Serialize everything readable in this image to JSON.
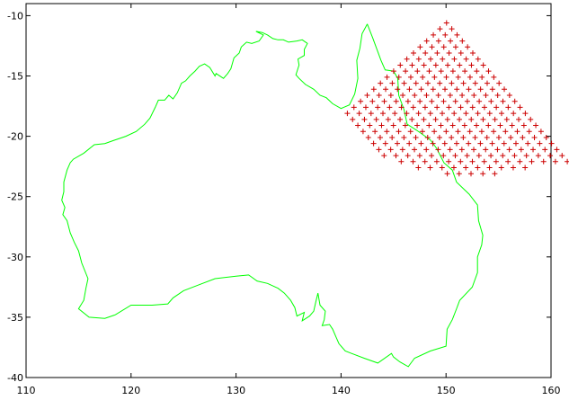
{
  "chart_data": {
    "type": "scatter",
    "title": "",
    "xlabel": "",
    "ylabel": "",
    "xlim": [
      110,
      160
    ],
    "ylim": [
      -40,
      -9
    ],
    "xticks": [
      110,
      120,
      130,
      140,
      150,
      160
    ],
    "yticks": [
      -10,
      -15,
      -20,
      -25,
      -30,
      -35,
      -40
    ],
    "xtick_labels": [
      "110",
      "120",
      "130",
      "140",
      "150",
      "160"
    ],
    "ytick_labels": [
      "-10",
      "-15",
      "-20",
      "-25",
      "-30",
      "-35",
      "-40"
    ],
    "grid": false,
    "legend": "none",
    "series": [
      {
        "kind": "line",
        "color": "#00ff00",
        "points": [
          [
            142.5,
            -10.7
          ],
          [
            143.0,
            -11.8
          ],
          [
            143.8,
            -13.7
          ],
          [
            144.2,
            -14.5
          ],
          [
            145.0,
            -14.6
          ],
          [
            145.4,
            -15.2
          ],
          [
            145.5,
            -16.6
          ],
          [
            146.0,
            -17.8
          ],
          [
            146.3,
            -19.0
          ],
          [
            147.2,
            -19.5
          ],
          [
            148.5,
            -20.3
          ],
          [
            149.1,
            -21.0
          ],
          [
            149.8,
            -22.2
          ],
          [
            150.6,
            -22.8
          ],
          [
            151.0,
            -23.8
          ],
          [
            152.2,
            -24.8
          ],
          [
            153.0,
            -25.7
          ],
          [
            153.1,
            -27.0
          ],
          [
            153.5,
            -28.2
          ],
          [
            153.4,
            -29.0
          ],
          [
            153.0,
            -30.0
          ],
          [
            153.0,
            -31.3
          ],
          [
            152.5,
            -32.5
          ],
          [
            151.3,
            -33.6
          ],
          [
            151.0,
            -34.3
          ],
          [
            150.6,
            -35.2
          ],
          [
            150.1,
            -36.0
          ],
          [
            150.0,
            -37.4
          ],
          [
            148.5,
            -37.8
          ],
          [
            147.0,
            -38.4
          ],
          [
            146.4,
            -39.1
          ],
          [
            145.6,
            -38.7
          ],
          [
            145.0,
            -38.3
          ],
          [
            144.8,
            -38.0
          ],
          [
            143.5,
            -38.8
          ],
          [
            142.2,
            -38.4
          ],
          [
            141.0,
            -38.0
          ],
          [
            140.4,
            -37.8
          ],
          [
            139.8,
            -37.2
          ],
          [
            139.5,
            -36.6
          ],
          [
            139.2,
            -36.0
          ],
          [
            138.9,
            -35.6
          ],
          [
            138.2,
            -35.7
          ],
          [
            138.4,
            -35.2
          ],
          [
            138.5,
            -34.5
          ],
          [
            138.0,
            -34.0
          ],
          [
            137.8,
            -33.0
          ],
          [
            137.6,
            -33.7
          ],
          [
            137.4,
            -34.5
          ],
          [
            137.0,
            -34.9
          ],
          [
            136.3,
            -35.3
          ],
          [
            136.5,
            -34.6
          ],
          [
            135.8,
            -34.9
          ],
          [
            135.6,
            -34.2
          ],
          [
            135.2,
            -33.6
          ],
          [
            134.6,
            -33.0
          ],
          [
            134.0,
            -32.6
          ],
          [
            133.0,
            -32.2
          ],
          [
            132.0,
            -32.0
          ],
          [
            131.2,
            -31.5
          ],
          [
            130.0,
            -31.6
          ],
          [
            128.0,
            -31.8
          ],
          [
            126.5,
            -32.3
          ],
          [
            125.0,
            -32.8
          ],
          [
            124.0,
            -33.4
          ],
          [
            123.5,
            -33.9
          ],
          [
            122.0,
            -34.0
          ],
          [
            120.0,
            -34.0
          ],
          [
            118.5,
            -34.8
          ],
          [
            117.5,
            -35.1
          ],
          [
            116.0,
            -35.0
          ],
          [
            115.0,
            -34.3
          ],
          [
            115.5,
            -33.6
          ],
          [
            115.7,
            -32.6
          ],
          [
            115.9,
            -31.8
          ],
          [
            115.3,
            -30.5
          ],
          [
            115.0,
            -29.5
          ],
          [
            114.6,
            -28.8
          ],
          [
            114.2,
            -28.0
          ],
          [
            113.9,
            -27.0
          ],
          [
            113.5,
            -26.5
          ],
          [
            113.7,
            -25.9
          ],
          [
            113.4,
            -25.3
          ],
          [
            113.6,
            -24.6
          ],
          [
            113.6,
            -23.8
          ],
          [
            113.9,
            -22.8
          ],
          [
            114.2,
            -22.2
          ],
          [
            114.5,
            -21.9
          ],
          [
            115.5,
            -21.4
          ],
          [
            116.5,
            -20.7
          ],
          [
            117.5,
            -20.6
          ],
          [
            118.5,
            -20.3
          ],
          [
            119.5,
            -20.0
          ],
          [
            120.5,
            -19.6
          ],
          [
            121.3,
            -19.0
          ],
          [
            121.8,
            -18.5
          ],
          [
            122.3,
            -17.6
          ],
          [
            122.6,
            -17.0
          ],
          [
            123.2,
            -17.0
          ],
          [
            123.6,
            -16.6
          ],
          [
            124.0,
            -16.9
          ],
          [
            124.4,
            -16.4
          ],
          [
            124.8,
            -15.6
          ],
          [
            125.2,
            -15.4
          ],
          [
            125.6,
            -15.0
          ],
          [
            126.1,
            -14.6
          ],
          [
            126.5,
            -14.2
          ],
          [
            127.0,
            -14.0
          ],
          [
            127.5,
            -14.3
          ],
          [
            128.0,
            -15.0
          ],
          [
            128.1,
            -14.8
          ],
          [
            128.8,
            -15.2
          ],
          [
            129.2,
            -14.8
          ],
          [
            129.5,
            -14.4
          ],
          [
            129.8,
            -13.5
          ],
          [
            130.3,
            -13.1
          ],
          [
            130.5,
            -12.6
          ],
          [
            131.0,
            -12.2
          ],
          [
            131.5,
            -12.3
          ],
          [
            132.2,
            -12.1
          ],
          [
            132.6,
            -11.6
          ],
          [
            131.9,
            -11.3
          ],
          [
            132.5,
            -11.4
          ],
          [
            133.0,
            -11.6
          ],
          [
            133.5,
            -11.9
          ],
          [
            134.0,
            -12.0
          ],
          [
            134.5,
            -12.0
          ],
          [
            135.0,
            -12.2
          ],
          [
            135.8,
            -12.1
          ],
          [
            136.3,
            -12.0
          ],
          [
            136.8,
            -12.3
          ],
          [
            136.5,
            -12.8
          ],
          [
            136.5,
            -13.3
          ],
          [
            135.9,
            -13.6
          ],
          [
            136.0,
            -14.1
          ],
          [
            135.7,
            -14.9
          ],
          [
            136.0,
            -15.2
          ],
          [
            136.6,
            -15.7
          ],
          [
            137.4,
            -16.1
          ],
          [
            138.0,
            -16.6
          ],
          [
            138.6,
            -16.8
          ],
          [
            139.2,
            -17.3
          ],
          [
            140.0,
            -17.7
          ],
          [
            140.8,
            -17.4
          ],
          [
            141.3,
            -16.5
          ],
          [
            141.6,
            -15.2
          ],
          [
            141.5,
            -13.7
          ],
          [
            141.8,
            -12.7
          ],
          [
            142.0,
            -11.5
          ],
          [
            142.5,
            -10.7
          ]
        ]
      },
      {
        "kind": "scatter",
        "marker": "+",
        "color": "#cc0000",
        "grid_origin": [
          140.6,
          -18.1
        ],
        "col_step": [
          0.63,
          0.5
        ],
        "row_step": [
          0.5,
          -0.5
        ],
        "cols": 16,
        "rows_per_col": [
          8,
          10,
          12,
          13,
          15,
          16,
          17,
          18,
          19,
          19,
          20,
          21,
          21,
          22,
          23,
          24
        ]
      }
    ]
  }
}
